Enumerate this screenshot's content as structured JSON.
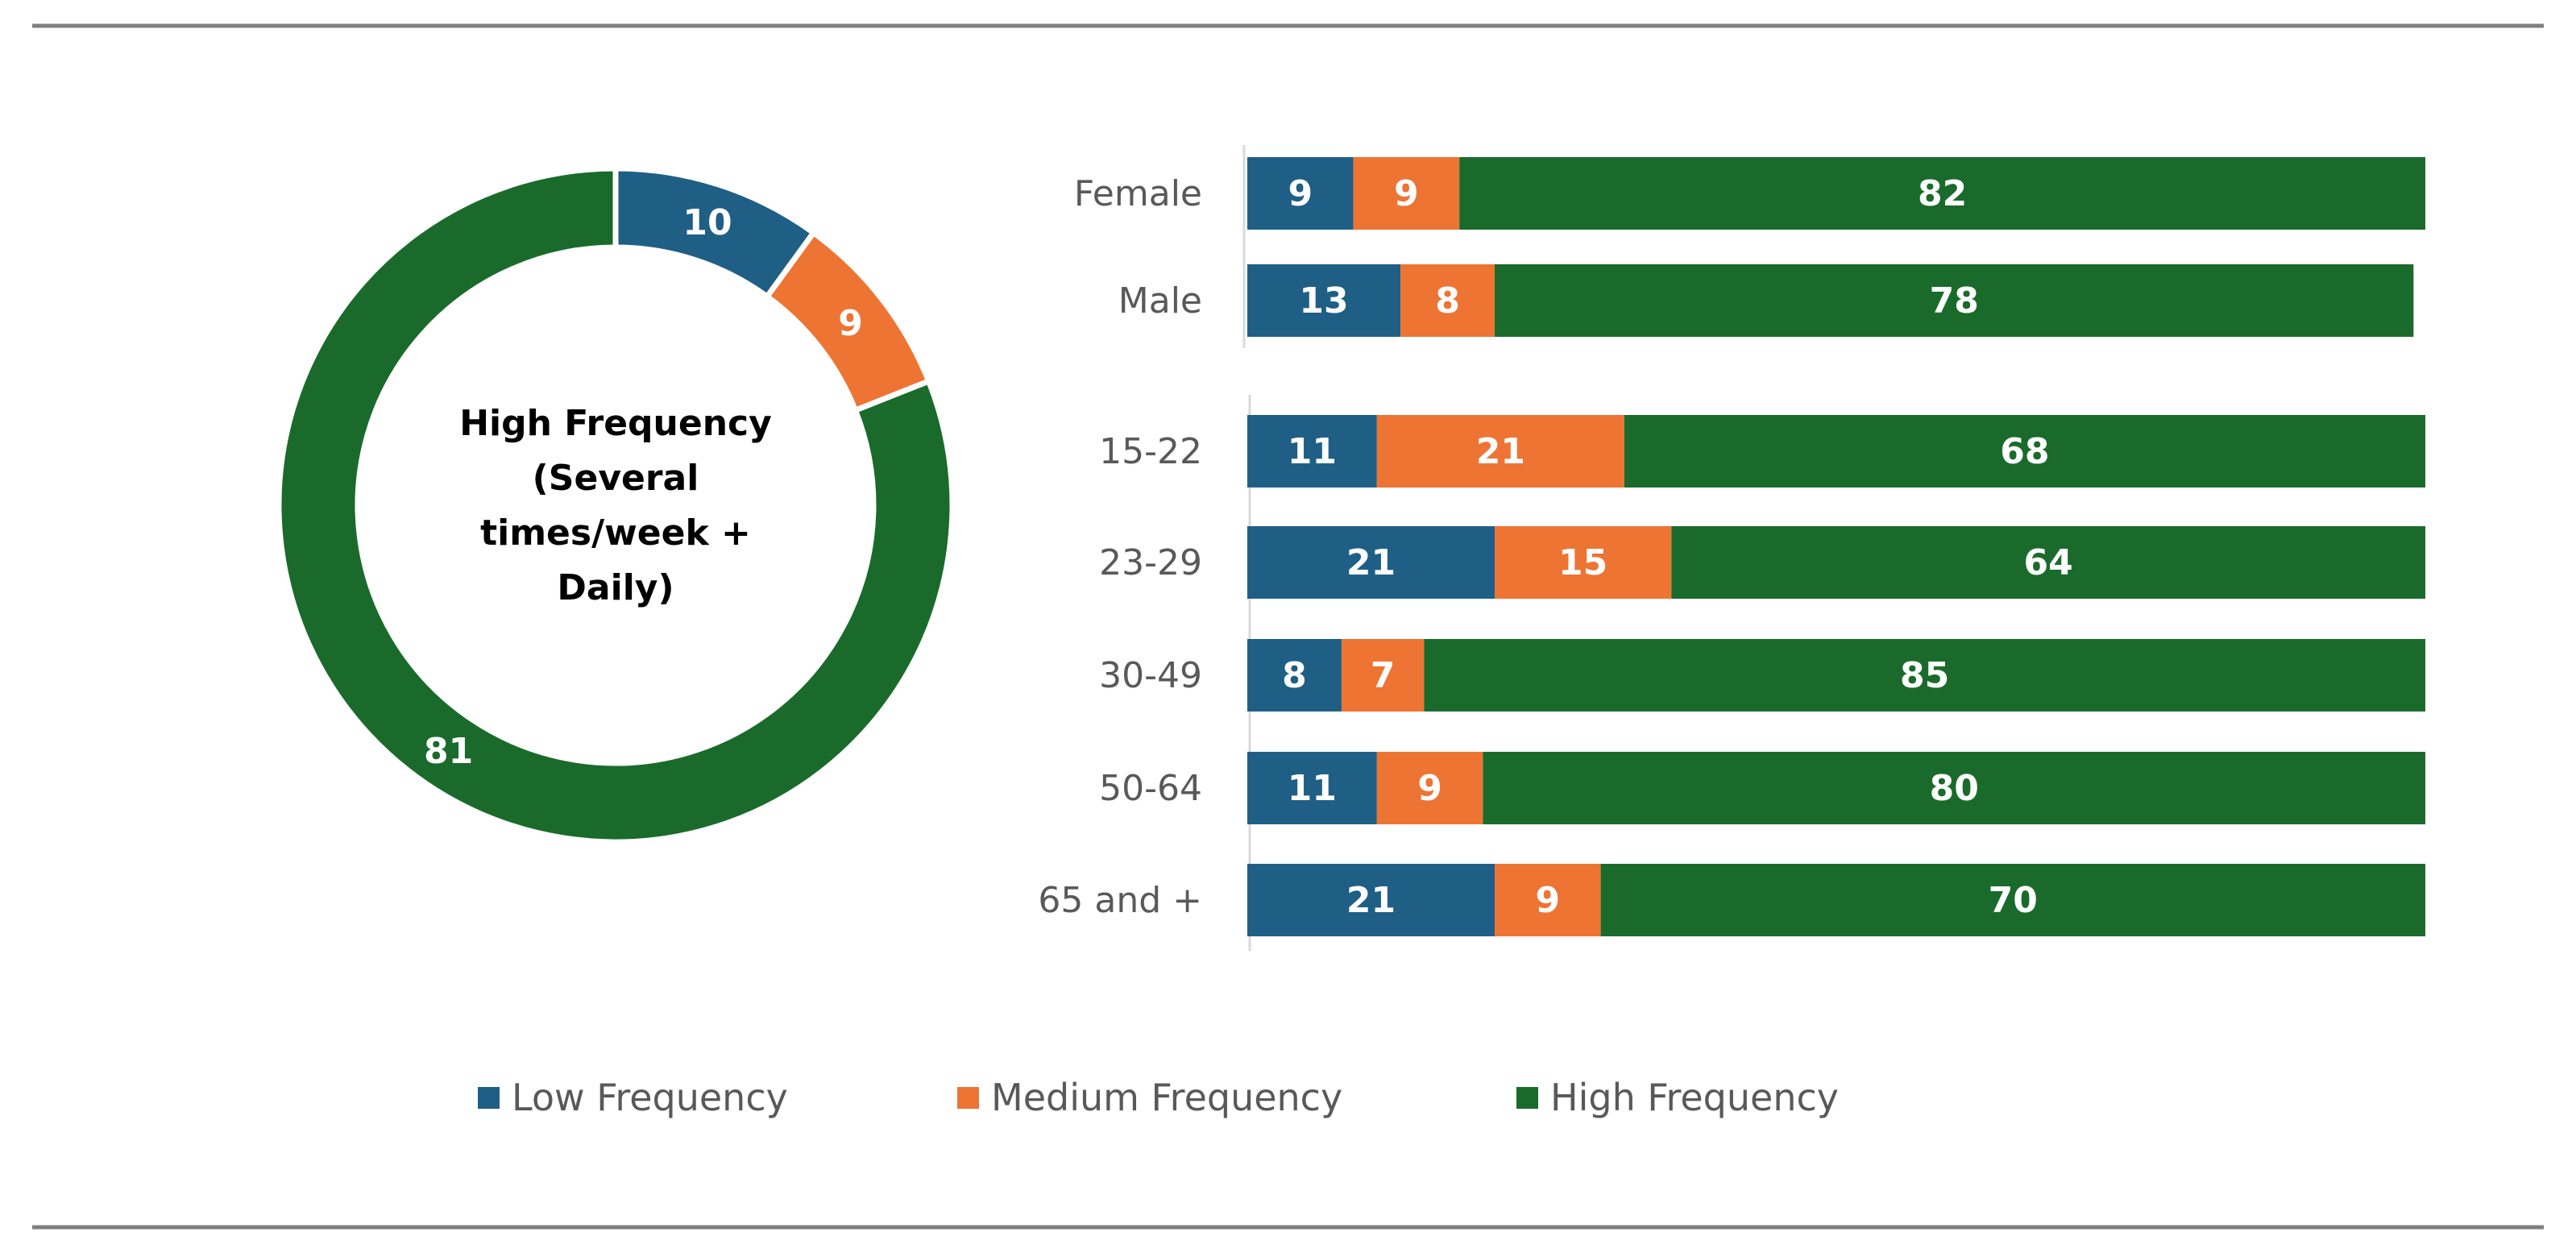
{
  "chart_data": [
    {
      "type": "pie",
      "subtype": "donut",
      "center_label": [
        "High Frequency",
        "(Several",
        "times/week +",
        "Daily)"
      ],
      "slices": [
        {
          "name": "Low Frequency",
          "value": 10,
          "color": "#1f5f86"
        },
        {
          "name": "Medium Frequency",
          "value": 9,
          "color": "#ed7433"
        },
        {
          "name": "High Frequency",
          "value": 81,
          "color": "#1a6b2b"
        }
      ]
    },
    {
      "type": "bar",
      "orientation": "horizontal",
      "stacked": true,
      "groups": [
        {
          "categories": [
            "Female",
            "Male"
          ],
          "series": [
            {
              "name": "Low Frequency",
              "color": "#1f5f86",
              "values": [
                9,
                13
              ]
            },
            {
              "name": "Medium Frequency",
              "color": "#ed7433",
              "values": [
                9,
                8
              ]
            },
            {
              "name": "High Frequency",
              "color": "#1a6b2b",
              "values": [
                82,
                78
              ]
            }
          ]
        },
        {
          "categories": [
            "15-22",
            "23-29",
            "30-49",
            "50-64",
            "65 and +"
          ],
          "series": [
            {
              "name": "Low Frequency",
              "color": "#1f5f86",
              "values": [
                11,
                21,
                8,
                11,
                21
              ]
            },
            {
              "name": "Medium Frequency",
              "color": "#ed7433",
              "values": [
                21,
                15,
                7,
                9,
                9
              ]
            },
            {
              "name": "High Frequency",
              "color": "#1a6b2b",
              "values": [
                68,
                64,
                85,
                80,
                70
              ]
            }
          ]
        }
      ],
      "xlim": [
        0,
        100
      ],
      "grid": false
    }
  ],
  "legend": {
    "position": "bottom",
    "items": [
      {
        "label": "Low Frequency",
        "color": "#1f5f86"
      },
      {
        "label": "Medium Frequency",
        "color": "#ed7433"
      },
      {
        "label": "High Frequency",
        "color": "#1a6b2b"
      }
    ]
  },
  "rule_color": "#7f7f7f"
}
